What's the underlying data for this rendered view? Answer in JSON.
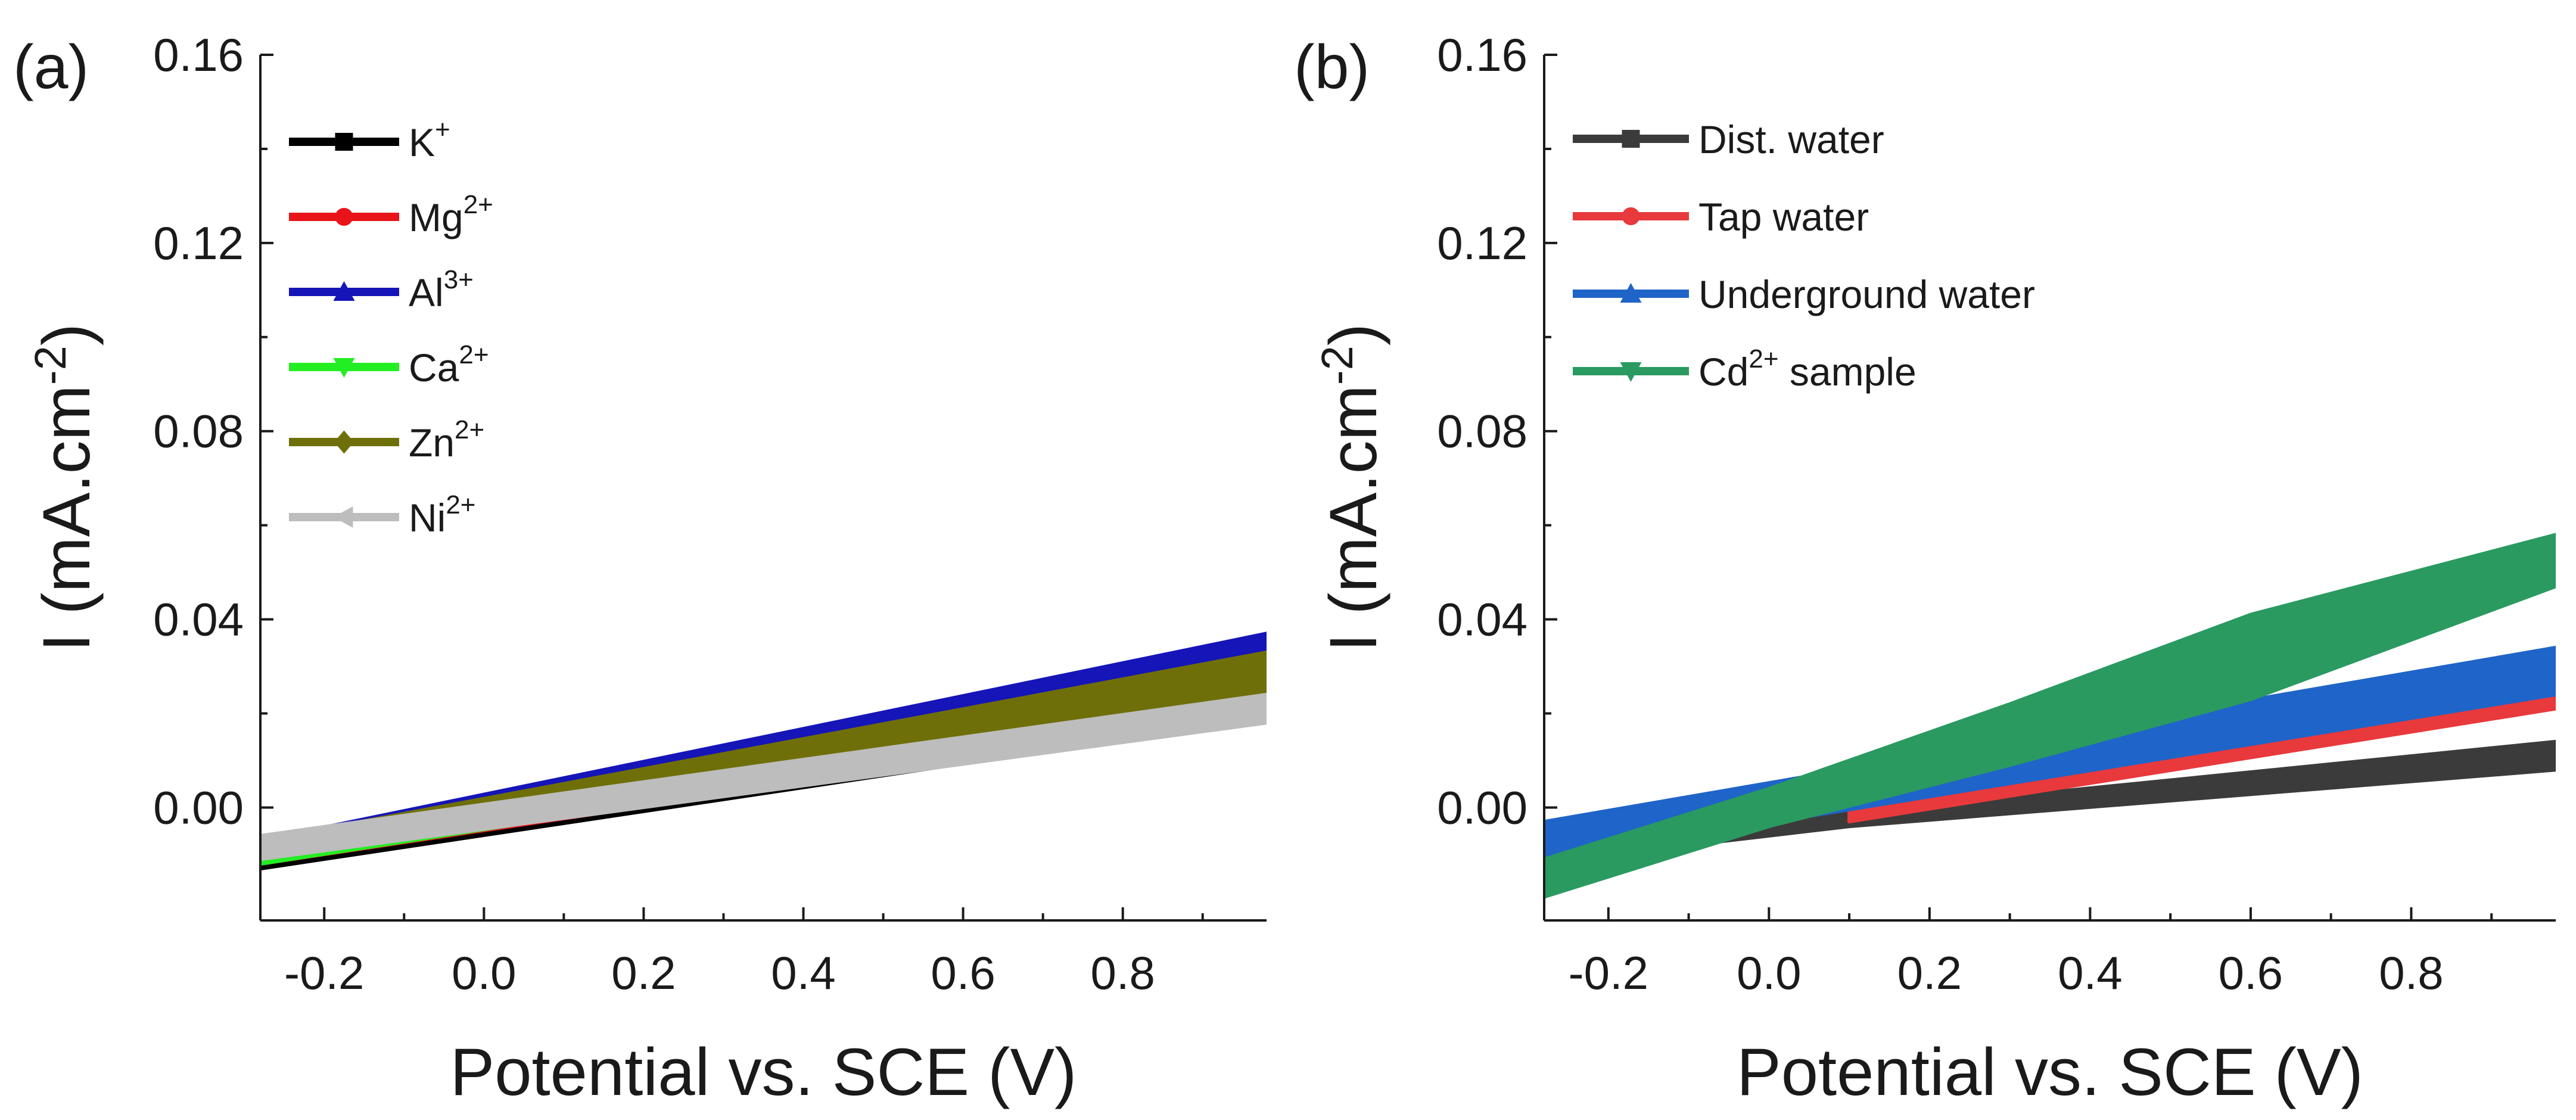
{
  "chart_data": [
    {
      "type": "line",
      "panel_label": "(a)",
      "xlabel": "Potential vs. SCE (V)",
      "ylabel": "I (mA.cm-2)",
      "ylabel_main": "I (mA.cm",
      "ylabel_sup": "-2",
      "ylabel_close": ")",
      "xlim": [
        -0.28,
        0.98
      ],
      "ylim": [
        -0.024,
        0.16
      ],
      "xticks": [
        -0.2,
        0.0,
        0.2,
        0.4,
        0.6,
        0.8
      ],
      "xtick_labels": [
        "-0.2",
        "0.0",
        "0.2",
        "0.4",
        "0.6",
        "0.8"
      ],
      "yticks": [
        0.0,
        0.04,
        0.08,
        0.12,
        0.16
      ],
      "ytick_labels": [
        "0.00",
        "0.04",
        "0.08",
        "0.12",
        "0.16"
      ],
      "legend_position": "top-left",
      "series": [
        {
          "name": "K+",
          "label_base": "K",
          "label_sup": "+",
          "color": "#000000",
          "marker": "square",
          "x": [
            -0.28,
            0.98
          ],
          "upper": [
            -0.008,
            0.03
          ],
          "lower": [
            -0.013,
            0.019
          ]
        },
        {
          "name": "Mg2+",
          "label_base": "Mg",
          "label_sup": "2+",
          "color": "#e8141a",
          "marker": "circle",
          "x": [
            -0.28,
            0.98
          ],
          "upper": [
            -0.008,
            0.031
          ],
          "lower": [
            -0.012,
            0.02
          ]
        },
        {
          "name": "Al3+",
          "label_base": "Al",
          "label_sup": "3+",
          "color": "#1515b8",
          "marker": "triangle-up",
          "x": [
            -0.28,
            0.98
          ],
          "upper": [
            -0.007,
            0.037
          ],
          "lower": [
            -0.012,
            0.026
          ]
        },
        {
          "name": "Ca2+",
          "label_base": "Ca",
          "label_sup": "2+",
          "color": "#22ee22",
          "marker": "triangle-down",
          "x": [
            -0.28,
            0.98
          ],
          "upper": [
            -0.008,
            0.029
          ],
          "lower": [
            -0.012,
            0.021
          ]
        },
        {
          "name": "Zn2+",
          "label_base": "Zn",
          "label_sup": "2+",
          "color": "#6f6f0a",
          "marker": "diamond",
          "x": [
            -0.28,
            0.98
          ],
          "upper": [
            -0.007,
            0.033
          ],
          "lower": [
            -0.011,
            0.022
          ]
        },
        {
          "name": "Ni2+",
          "label_base": "Ni",
          "label_sup": "2+",
          "color": "#bdbdbd",
          "marker": "triangle-left",
          "x": [
            -0.28,
            0.98
          ],
          "upper": [
            -0.006,
            0.024
          ],
          "lower": [
            -0.011,
            0.018
          ]
        }
      ]
    },
    {
      "type": "line",
      "panel_label": "(b)",
      "xlabel": "Potential vs. SCE (V)",
      "ylabel": "I (mA.cm-2)",
      "ylabel_main": "I (mA.cm",
      "ylabel_sup": "-2",
      "ylabel_close": ")",
      "xlim": [
        -0.28,
        0.98
      ],
      "ylim": [
        -0.024,
        0.16
      ],
      "xticks": [
        -0.2,
        0.0,
        0.2,
        0.4,
        0.6,
        0.8
      ],
      "xtick_labels": [
        "-0.2",
        "0.0",
        "0.2",
        "0.4",
        "0.6",
        "0.8"
      ],
      "yticks": [
        0.0,
        0.04,
        0.08,
        0.12,
        0.16
      ],
      "ytick_labels": [
        "0.00",
        "0.04",
        "0.08",
        "0.12",
        "0.16"
      ],
      "legend_position": "top-left",
      "series": [
        {
          "name": "Dist. water",
          "label_base": "Dist. water",
          "label_sup": "",
          "color": "#3b3b3b",
          "marker": "square",
          "x": [
            -0.1,
            0.1,
            0.98
          ],
          "upper": [
            -0.007,
            -0.001,
            0.014
          ],
          "lower": [
            -0.008,
            -0.004,
            0.008
          ]
        },
        {
          "name": "Tap water",
          "label_base": "Tap water",
          "label_sup": "",
          "color": "#e8393c",
          "marker": "circle",
          "x": [
            0.1,
            0.98
          ],
          "upper": [
            0.0,
            0.028
          ],
          "lower": [
            -0.003,
            0.021
          ]
        },
        {
          "name": "Underground water",
          "label_base": "Underground water",
          "label_sup": "",
          "color": "#1f64c8",
          "marker": "triangle-up",
          "x": [
            -0.28,
            0.98
          ],
          "upper": [
            -0.003,
            0.034
          ],
          "lower": [
            -0.011,
            0.024
          ]
        },
        {
          "name": "Cd2+ sample",
          "label_base": "Cd",
          "label_sup": "2+",
          "label_after": " sample",
          "color": "#2a9a60",
          "marker": "triangle-down",
          "x": [
            -0.28,
            0.0,
            0.3,
            0.6,
            0.98
          ],
          "upper": [
            -0.011,
            0.004,
            0.022,
            0.041,
            0.058
          ],
          "lower": [
            -0.019,
            -0.004,
            0.009,
            0.023,
            0.047
          ]
        }
      ]
    }
  ]
}
